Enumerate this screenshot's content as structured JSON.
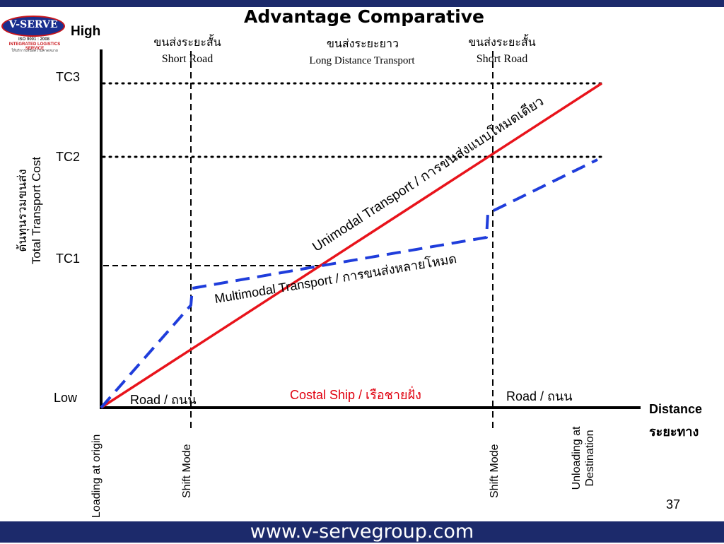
{
  "slide": {
    "title": "Advantage Comparative",
    "page_number": "37",
    "footer_url": "www.v-servegroup.com"
  },
  "logo": {
    "brand": "V-SERVE",
    "iso": "ISO 9001 : 2008",
    "tagline": "INTEGRATED LOGISTICS SERVICE",
    "thai": "ให้บริการเหนือความคาดหมาย"
  },
  "axes": {
    "y_high": "High",
    "y_low": "Low",
    "y_label_thai": "ต้นทุนรวมขนส่ง",
    "y_label": "Total Transport Cost",
    "x_label": "Distance",
    "x_label_thai": "ระยะทาง"
  },
  "cost_levels": [
    "TC3",
    "TC2",
    "TC1"
  ],
  "segments": [
    {
      "thai": "ขนส่งระยะสั้น",
      "english": "Short Road"
    },
    {
      "thai": "ขนส่งระยะยาว",
      "english": "Long Distance Transport"
    },
    {
      "thai": "ขนส่งระยะสั้น",
      "english": "Short Road"
    }
  ],
  "mode_labels": {
    "road_left": "Road / ถนน",
    "coastal": "Costal Ship / เรือชายฝั่ง",
    "road_right": "Road / ถนน"
  },
  "lines": {
    "unimodal": "Unimodal Transport / การขนส่งแบบโหมดเดียว",
    "multimodal": "Multimodal Transport / การขนส่งหลายโหมด"
  },
  "x_points": [
    "Loading at origin",
    "Shift Mode",
    "Shift Mode",
    "Unloading at Destination"
  ],
  "colors": {
    "unimodal": "#e8131b",
    "multimodal": "#1f3ddb",
    "banner": "#1c2a6b",
    "coastal_text": "#e0000f"
  }
}
